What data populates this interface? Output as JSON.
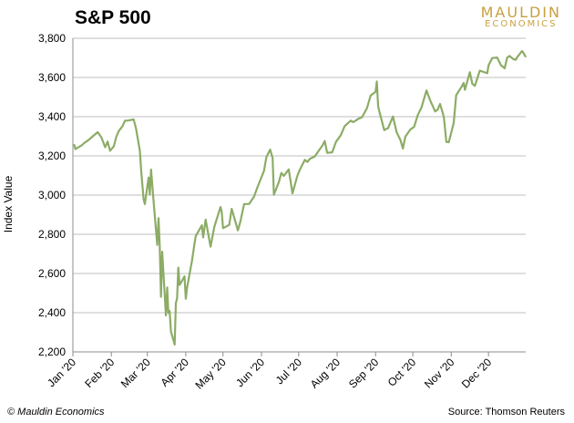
{
  "title": "S&P 500",
  "logo": {
    "top": "MAULDIN",
    "bottom": "ECONOMICS",
    "color": "#c8a040"
  },
  "footer": {
    "left": "© Mauldin Economics",
    "right": "Source: Thomson  Reuters"
  },
  "colors": {
    "line": "#8cac66",
    "grid": "#bfbfbf"
  },
  "chart_data": {
    "type": "line",
    "title": "S&P 500",
    "xlabel": "",
    "ylabel": "Index Value",
    "ylim": [
      2200,
      3800
    ],
    "yticks": [
      "2,200",
      "2,400",
      "2,600",
      "2,800",
      "3,000",
      "3,200",
      "3,400",
      "3,600",
      "3,800"
    ],
    "ytick_values": [
      2200,
      2400,
      2600,
      2800,
      3000,
      3200,
      3400,
      3600,
      3800
    ],
    "xticks": [
      "Jan '20",
      "Feb '20",
      "Mar '20",
      "Apr '20",
      "May '20",
      "Jun '20",
      "Jul '20",
      "Aug '20",
      "Sep '20",
      "Oct '20",
      "Nov '20",
      "Dec '20"
    ],
    "xtick_dates": [
      "2020-01-01",
      "2020-02-01",
      "2020-03-01",
      "2020-04-01",
      "2020-05-01",
      "2020-06-01",
      "2020-07-01",
      "2020-08-01",
      "2020-09-01",
      "2020-10-01",
      "2020-11-01",
      "2020-12-01"
    ],
    "xlim": [
      "2020-01-01",
      "2020-12-31"
    ],
    "grid": true,
    "series": [
      {
        "name": "",
        "points": [
          [
            "2020-01-02",
            3258
          ],
          [
            "2020-01-03",
            3235
          ],
          [
            "2020-01-06",
            3246
          ],
          [
            "2020-01-08",
            3253
          ],
          [
            "2020-01-10",
            3265
          ],
          [
            "2020-01-14",
            3283
          ],
          [
            "2020-01-17",
            3300
          ],
          [
            "2020-01-21",
            3321
          ],
          [
            "2020-01-24",
            3295
          ],
          [
            "2020-01-27",
            3244
          ],
          [
            "2020-01-29",
            3273
          ],
          [
            "2020-01-31",
            3226
          ],
          [
            "2020-02-03",
            3249
          ],
          [
            "2020-02-05",
            3298
          ],
          [
            "2020-02-07",
            3327
          ],
          [
            "2020-02-10",
            3352
          ],
          [
            "2020-02-12",
            3380
          ],
          [
            "2020-02-14",
            3380
          ],
          [
            "2020-02-19",
            3386
          ],
          [
            "2020-02-21",
            3337
          ],
          [
            "2020-02-24",
            3226
          ],
          [
            "2020-02-25",
            3128
          ],
          [
            "2020-02-27",
            2979
          ],
          [
            "2020-02-28",
            2954
          ],
          [
            "2020-03-02",
            3090
          ],
          [
            "2020-03-03",
            3003
          ],
          [
            "2020-03-04",
            3130
          ],
          [
            "2020-03-06",
            2972
          ],
          [
            "2020-03-09",
            2746
          ],
          [
            "2020-03-10",
            2882
          ],
          [
            "2020-03-11",
            2741
          ],
          [
            "2020-03-12",
            2481
          ],
          [
            "2020-03-13",
            2711
          ],
          [
            "2020-03-16",
            2386
          ],
          [
            "2020-03-17",
            2529
          ],
          [
            "2020-03-18",
            2398
          ],
          [
            "2020-03-19",
            2409
          ],
          [
            "2020-03-20",
            2305
          ],
          [
            "2020-03-23",
            2237
          ],
          [
            "2020-03-24",
            2447
          ],
          [
            "2020-03-25",
            2476
          ],
          [
            "2020-03-26",
            2630
          ],
          [
            "2020-03-27",
            2541
          ],
          [
            "2020-03-31",
            2585
          ],
          [
            "2020-04-01",
            2471
          ],
          [
            "2020-04-02",
            2527
          ],
          [
            "2020-04-06",
            2664
          ],
          [
            "2020-04-08",
            2750
          ],
          [
            "2020-04-09",
            2790
          ],
          [
            "2020-04-14",
            2846
          ],
          [
            "2020-04-15",
            2784
          ],
          [
            "2020-04-17",
            2875
          ],
          [
            "2020-04-21",
            2737
          ],
          [
            "2020-04-24",
            2837
          ],
          [
            "2020-04-29",
            2939
          ],
          [
            "2020-04-30",
            2912
          ],
          [
            "2020-05-01",
            2831
          ],
          [
            "2020-05-06",
            2848
          ],
          [
            "2020-05-08",
            2930
          ],
          [
            "2020-05-13",
            2820
          ],
          [
            "2020-05-15",
            2864
          ],
          [
            "2020-05-18",
            2954
          ],
          [
            "2020-05-22",
            2955
          ],
          [
            "2020-05-26",
            2992
          ],
          [
            "2020-05-29",
            3044
          ],
          [
            "2020-06-03",
            3123
          ],
          [
            "2020-06-05",
            3194
          ],
          [
            "2020-06-08",
            3232
          ],
          [
            "2020-06-10",
            3190
          ],
          [
            "2020-06-11",
            3002
          ],
          [
            "2020-06-15",
            3066
          ],
          [
            "2020-06-17",
            3113
          ],
          [
            "2020-06-19",
            3098
          ],
          [
            "2020-06-23",
            3131
          ],
          [
            "2020-06-26",
            3009
          ],
          [
            "2020-06-30",
            3100
          ],
          [
            "2020-07-02",
            3130
          ],
          [
            "2020-07-06",
            3180
          ],
          [
            "2020-07-08",
            3169
          ],
          [
            "2020-07-10",
            3185
          ],
          [
            "2020-07-14",
            3197
          ],
          [
            "2020-07-17",
            3225
          ],
          [
            "2020-07-20",
            3251
          ],
          [
            "2020-07-22",
            3276
          ],
          [
            "2020-07-24",
            3216
          ],
          [
            "2020-07-28",
            3218
          ],
          [
            "2020-07-31",
            3271
          ],
          [
            "2020-08-04",
            3306
          ],
          [
            "2020-08-07",
            3351
          ],
          [
            "2020-08-12",
            3380
          ],
          [
            "2020-08-14",
            3372
          ],
          [
            "2020-08-18",
            3389
          ],
          [
            "2020-08-21",
            3397
          ],
          [
            "2020-08-25",
            3443
          ],
          [
            "2020-08-28",
            3508
          ],
          [
            "2020-09-01",
            3527
          ],
          [
            "2020-09-02",
            3580
          ],
          [
            "2020-09-03",
            3455
          ],
          [
            "2020-09-04",
            3427
          ],
          [
            "2020-09-08",
            3331
          ],
          [
            "2020-09-10",
            3339
          ],
          [
            "2020-09-11",
            3341
          ],
          [
            "2020-09-15",
            3401
          ],
          [
            "2020-09-18",
            3320
          ],
          [
            "2020-09-21",
            3281
          ],
          [
            "2020-09-23",
            3237
          ],
          [
            "2020-09-25",
            3298
          ],
          [
            "2020-09-29",
            3335
          ],
          [
            "2020-10-02",
            3348
          ],
          [
            "2020-10-05",
            3408
          ],
          [
            "2020-10-08",
            3447
          ],
          [
            "2020-10-12",
            3534
          ],
          [
            "2020-10-15",
            3483
          ],
          [
            "2020-10-19",
            3427
          ],
          [
            "2020-10-21",
            3436
          ],
          [
            "2020-10-23",
            3465
          ],
          [
            "2020-10-26",
            3400
          ],
          [
            "2020-10-28",
            3271
          ],
          [
            "2020-10-30",
            3270
          ],
          [
            "2020-11-03",
            3369
          ],
          [
            "2020-11-05",
            3510
          ],
          [
            "2020-11-09",
            3550
          ],
          [
            "2020-11-11",
            3572
          ],
          [
            "2020-11-12",
            3537
          ],
          [
            "2020-11-16",
            3627
          ],
          [
            "2020-11-18",
            3568
          ],
          [
            "2020-11-20",
            3557
          ],
          [
            "2020-11-24",
            3635
          ],
          [
            "2020-11-30",
            3622
          ],
          [
            "2020-12-01",
            3662
          ],
          [
            "2020-12-04",
            3699
          ],
          [
            "2020-12-08",
            3702
          ],
          [
            "2020-12-11",
            3663
          ],
          [
            "2020-12-14",
            3647
          ],
          [
            "2020-12-16",
            3701
          ],
          [
            "2020-12-18",
            3710
          ],
          [
            "2020-12-21",
            3694
          ],
          [
            "2020-12-23",
            3690
          ],
          [
            "2020-12-24",
            3703
          ],
          [
            "2020-12-28",
            3735
          ],
          [
            "2020-12-29",
            3727
          ],
          [
            "2020-12-31",
            3705
          ]
        ]
      }
    ]
  }
}
